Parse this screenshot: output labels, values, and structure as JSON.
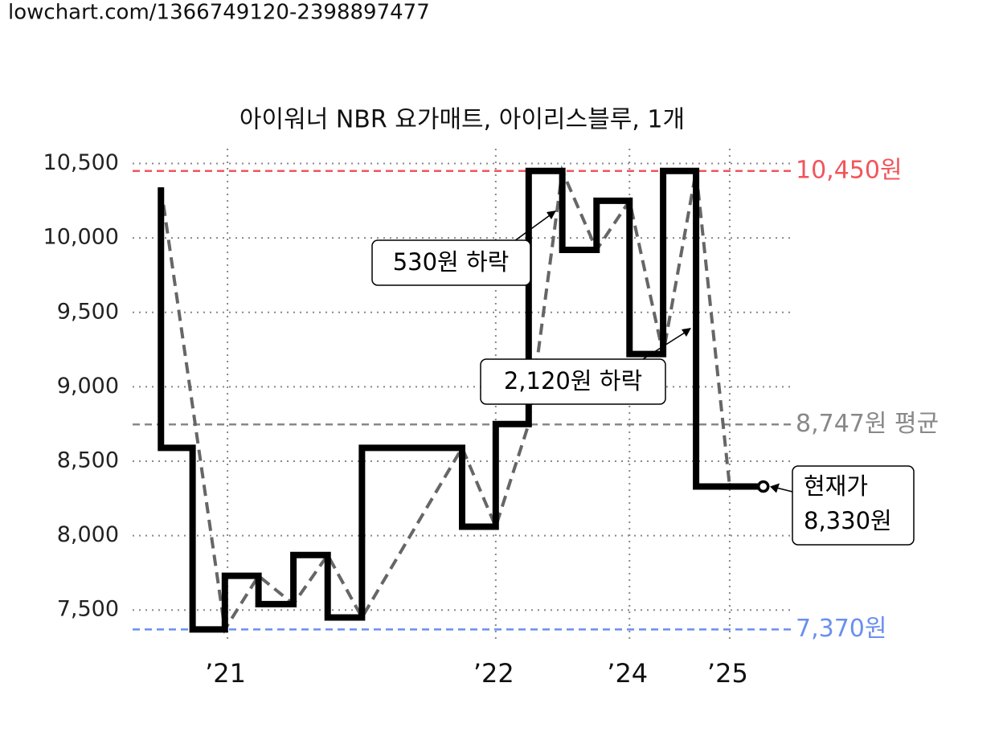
{
  "header": {
    "url": "lowchart.com/1366749120-2398897477"
  },
  "chart_data": {
    "type": "step",
    "title": "아이워너 NBR 요가매트, 아이리스블루, 1개",
    "xlim": [
      0,
      100
    ],
    "ylim": [
      7280,
      10600
    ],
    "xticks": [
      {
        "value": 14.4,
        "label": "’21"
      },
      {
        "value": 55.1,
        "label": "’22"
      },
      {
        "value": 75.4,
        "label": "’24"
      },
      {
        "value": 90.6,
        "label": "’25"
      }
    ],
    "yticks": [
      {
        "value": 7500,
        "label": "7,500"
      },
      {
        "value": 8000,
        "label": "8,000"
      },
      {
        "value": 8500,
        "label": "8,500"
      },
      {
        "value": 9000,
        "label": "9,000"
      },
      {
        "value": 9500,
        "label": "9,500"
      },
      {
        "value": 10000,
        "label": "10,000"
      },
      {
        "value": 10500,
        "label": "10,500"
      }
    ],
    "grid": true,
    "series": [
      {
        "color": "#000000",
        "style": "solid",
        "x": [
          4.3,
          4.3,
          9.1,
          14.0,
          19.1,
          24.4,
          29.6,
          34.8,
          50.0,
          55.1,
          60.1,
          65.2,
          70.4,
          75.4,
          80.5,
          85.5,
          95.7
        ],
        "values": [
          10340,
          8590,
          7370,
          7730,
          7540,
          7870,
          7450,
          8590,
          8060,
          8750,
          10450,
          9920,
          10250,
          9220,
          10450,
          8330,
          8330
        ]
      },
      {
        "color": "#666666",
        "style": "dashed",
        "x": [
          4.3,
          14.0,
          19.1,
          24.4,
          29.6,
          34.8,
          50.0,
          55.1,
          60.1,
          65.2,
          70.4,
          75.4,
          80.5,
          85.5,
          90.6
        ],
        "values": [
          10340,
          7370,
          7730,
          7540,
          7870,
          7450,
          8590,
          8060,
          8750,
          10450,
          9920,
          10250,
          9220,
          10450,
          8330
        ]
      }
    ],
    "ref_lines": [
      {
        "value": 10450,
        "label": "10,450원",
        "color": "#f2545b"
      },
      {
        "value": 8747,
        "label": "8,747원 평균",
        "color": "#888888"
      },
      {
        "value": 7370,
        "label": "7,370원",
        "color": "#6b8ff0"
      }
    ],
    "annotations": [
      "530원 하락",
      "2,120원 하락"
    ],
    "current": {
      "label": "현재가",
      "value": 8330,
      "value_label": "8,330원"
    }
  }
}
